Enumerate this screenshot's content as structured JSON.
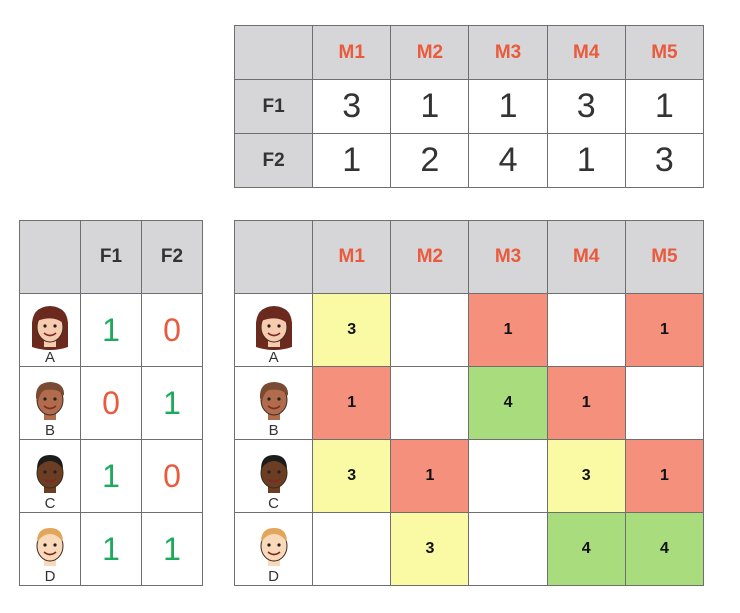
{
  "colors": {
    "header_bg": "#d6d6d8",
    "movie_label": "#ea5a3c",
    "like": "#1daa5c",
    "dislike": "#ea5a3c",
    "rating_1": "#f4907c",
    "rating_3": "#fafaa5",
    "rating_4": "#a8dc7c"
  },
  "movies": [
    "M1",
    "M2",
    "M3",
    "M4",
    "M5"
  ],
  "features": [
    "F1",
    "F2"
  ],
  "movie_features": [
    {
      "feature": "F1",
      "values": [
        "3",
        "1",
        "1",
        "3",
        "1"
      ]
    },
    {
      "feature": "F2",
      "values": [
        "1",
        "2",
        "4",
        "1",
        "3"
      ]
    }
  ],
  "users": [
    {
      "label": "A",
      "icon": "user-a-avatar-icon",
      "prefs": [
        "1",
        "0"
      ],
      "ratings": [
        "3",
        "",
        "1",
        "",
        "1"
      ]
    },
    {
      "label": "B",
      "icon": "user-b-avatar-icon",
      "prefs": [
        "0",
        "1"
      ],
      "ratings": [
        "1",
        "",
        "4",
        "1",
        ""
      ]
    },
    {
      "label": "C",
      "icon": "user-c-avatar-icon",
      "prefs": [
        "1",
        "0"
      ],
      "ratings": [
        "3",
        "1",
        "",
        "3",
        "1"
      ]
    },
    {
      "label": "D",
      "icon": "user-d-avatar-icon",
      "prefs": [
        "1",
        "1"
      ],
      "ratings": [
        "",
        "3",
        "",
        "4",
        "4"
      ]
    }
  ]
}
